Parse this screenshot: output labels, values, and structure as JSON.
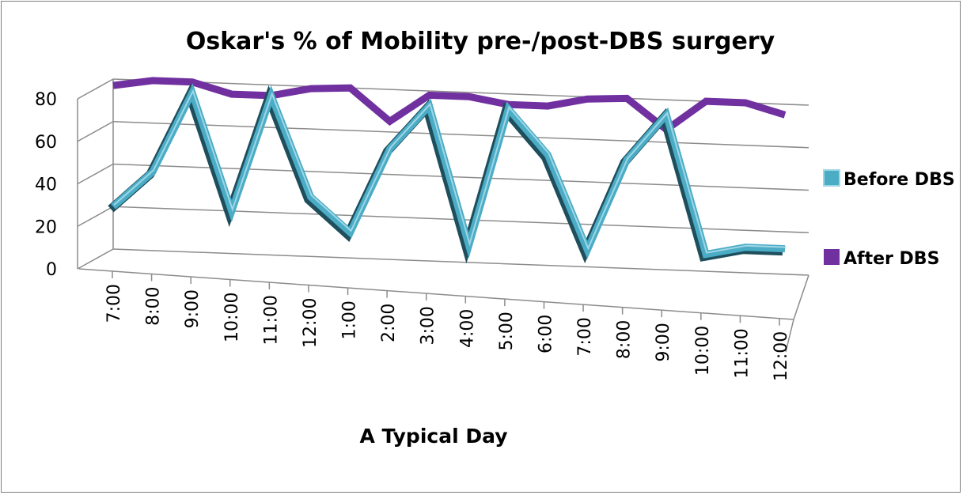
{
  "chart_data": {
    "type": "line",
    "style": "3d-line",
    "title": "Oskar's % of Mobility pre-/post-DBS surgery",
    "xlabel": "A Typical Day",
    "ylabel": "",
    "ylim": [
      0,
      80
    ],
    "yticks": [
      "0",
      "20",
      "40",
      "60",
      "80"
    ],
    "categories": [
      "7:00",
      "8:00",
      "9:00",
      "10:00",
      "11:00",
      "12:00",
      "1:00",
      "2:00",
      "3:00",
      "4:00",
      "5:00",
      "6:00",
      "7:00",
      "8:00",
      "9:00",
      "10:00",
      "11:00",
      "12:00"
    ],
    "series": [
      {
        "name": "Before DBS",
        "color": "#4bacc6",
        "values": [
          20,
          37,
          75,
          20,
          75,
          28,
          12,
          52,
          73,
          8,
          73,
          52,
          8,
          51,
          73,
          8,
          12,
          12
        ]
      },
      {
        "name": "After DBS",
        "color": "#7030a0",
        "values": [
          77,
          80,
          80,
          75,
          75,
          79,
          80,
          65,
          78,
          78,
          75,
          75,
          79,
          80,
          66,
          80,
          80,
          75
        ]
      }
    ],
    "legend_position": "right",
    "grid": true
  }
}
